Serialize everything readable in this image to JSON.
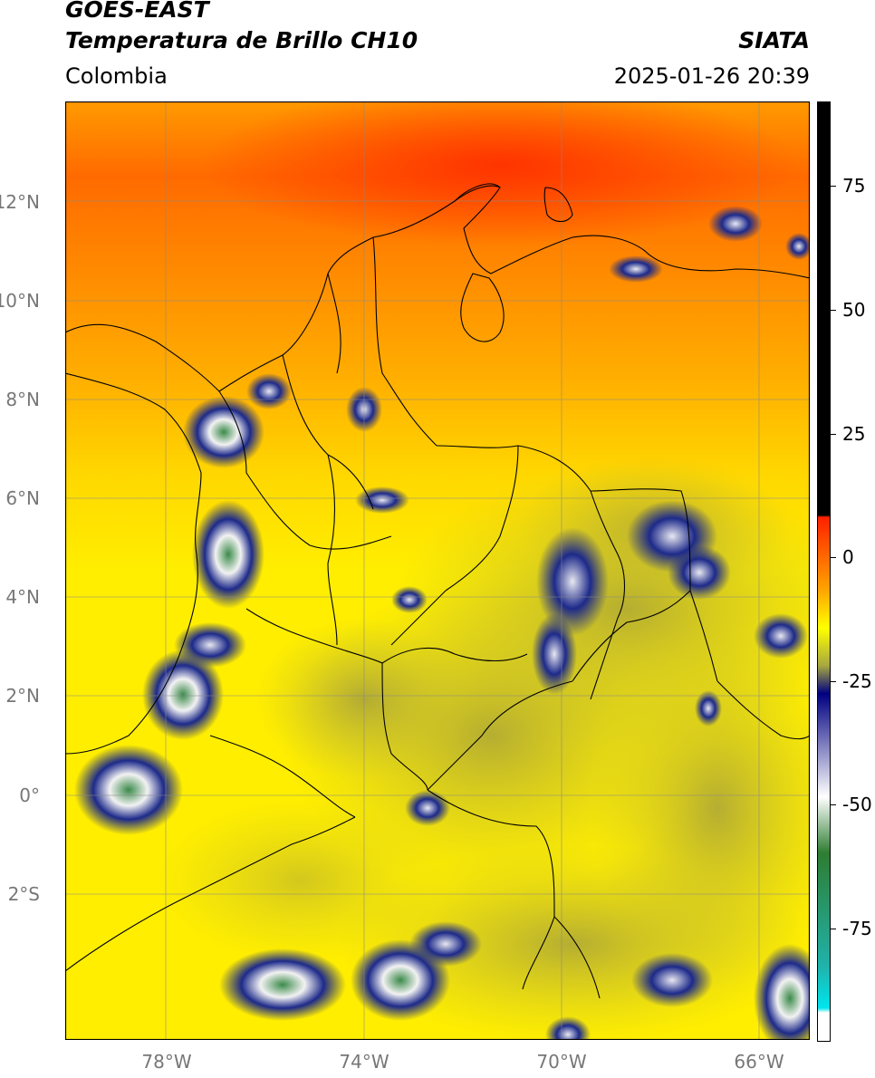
{
  "header": {
    "satellite": "GOES-EAST",
    "product": "Temperatura de Brillo CH10",
    "region": "Colombia",
    "source": "SIATA",
    "datetime": "2025-01-26 20:39"
  },
  "axes": {
    "lat_ticks": [
      "12°N",
      "10°N",
      "8°N",
      "6°N",
      "4°N",
      "2°N",
      "0°",
      "2°S"
    ],
    "lon_ticks": [
      "78°W",
      "74°W",
      "70°W",
      "66°W"
    ]
  },
  "colorbar": {
    "ticks": [
      "75",
      "50",
      "25",
      "0",
      "-25",
      "-50",
      "-75"
    ],
    "colors": {
      "hot": "#000000",
      "warm": "#ff2000",
      "orange": "#ffa500",
      "yellow": "#ffff00",
      "olive": "#a8a840",
      "navy": "#000080",
      "white": "#ffffff",
      "green": "#2e7d32",
      "teal": "#20b2aa",
      "cyan": "#00e5ee"
    }
  },
  "map_colors": {
    "north": "#ff5a00",
    "mid": "#ffb000",
    "south": "#ffee00",
    "cloud_olive": "#b7b03a",
    "cloud_navy": "#1d2a8a",
    "cloud_white": "#f2f2f2",
    "cloud_green": "#3b8a4a",
    "borders": "#000000",
    "grid": "#888888"
  }
}
